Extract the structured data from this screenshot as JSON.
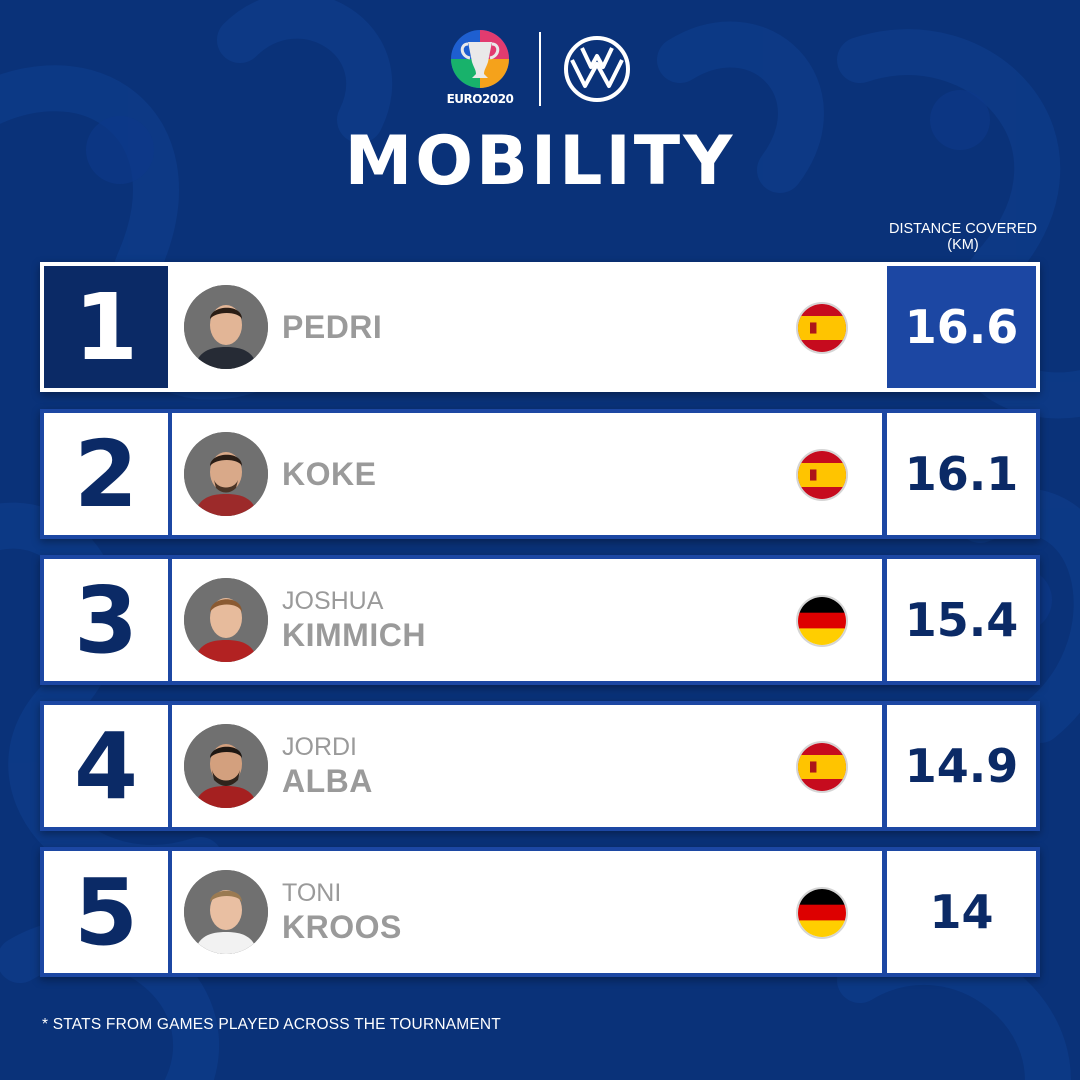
{
  "header": {
    "brand_left": "EURO2020",
    "brand_left_icon": "euro2020-trophy-icon",
    "brand_right_icon": "volkswagen-logo-icon",
    "title": "MOBILITY"
  },
  "table": {
    "column_header": "DISTANCE COVERED (KM)",
    "rows": [
      {
        "rank": "1",
        "first_name": "",
        "last_name": "PEDRI",
        "country_flag": "spain-flag-icon",
        "value": "16.6",
        "highlighted": true
      },
      {
        "rank": "2",
        "first_name": "",
        "last_name": "KOKE",
        "country_flag": "spain-flag-icon",
        "value": "16.1",
        "highlighted": false
      },
      {
        "rank": "3",
        "first_name": "JOSHUA",
        "last_name": "KIMMICH",
        "country_flag": "germany-flag-icon",
        "value": "15.4",
        "highlighted": false
      },
      {
        "rank": "4",
        "first_name": "JORDI",
        "last_name": "ALBA",
        "country_flag": "spain-flag-icon",
        "value": "14.9",
        "highlighted": false
      },
      {
        "rank": "5",
        "first_name": "TONI",
        "last_name": "KROOS",
        "country_flag": "germany-flag-icon",
        "value": "14",
        "highlighted": false
      }
    ]
  },
  "footnote": "* STATS FROM GAMES PLAYED ACROSS THE TOURNAMENT",
  "colors": {
    "background": "#0a3279",
    "accent": "#1c47a3",
    "rank_text": "#0b2a66",
    "name_text": "#9a9a9a"
  }
}
